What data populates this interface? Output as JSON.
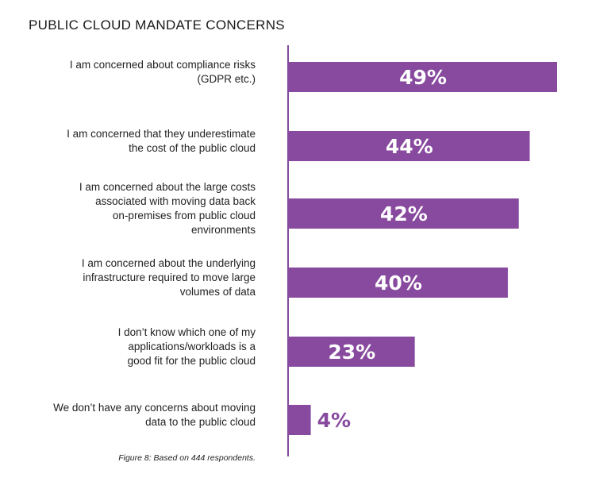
{
  "chart_data": {
    "type": "bar",
    "orientation": "horizontal",
    "title": "PUBLIC CLOUD MANDATE CONCERNS",
    "categories": [
      "I am concerned about compliance risks (GDPR etc.)",
      "I am concerned that they underestimate the cost of the public cloud",
      "I am concerned about the large costs associated with moving data back on-premises from public cloud environments",
      "I am concerned about the underlying infrastructure required to move large volumes of data",
      "I don’t know which one of my applications/workloads is a good fit for the public cloud",
      "We don’t have any concerns about moving data to the public cloud"
    ],
    "category_lines": [
      [
        "I am concerned about compliance risks",
        "(GDPR etc.)"
      ],
      [
        "I am concerned that they underestimate",
        "the cost of the public cloud"
      ],
      [
        "I am concerned about the large costs",
        "associated with moving data back",
        "on-premises from public cloud",
        "environments"
      ],
      [
        "I am concerned about the underlying",
        "infrastructure required to move large",
        "volumes of data"
      ],
      [
        "I don’t know which one of my",
        "applications/workloads is a",
        "good fit for the public cloud"
      ],
      [
        "We don’t have any concerns about moving",
        "data to the public cloud"
      ]
    ],
    "values": [
      49,
      44,
      42,
      40,
      23,
      4
    ],
    "data_labels": [
      "49%",
      "44%",
      "42%",
      "40%",
      "23%",
      "4%"
    ],
    "unit": "%",
    "xlim": [
      0,
      50
    ],
    "grid": false,
    "bar_color": "#884a9e",
    "footnote": "Figure 8: Based on 444 respondents."
  }
}
